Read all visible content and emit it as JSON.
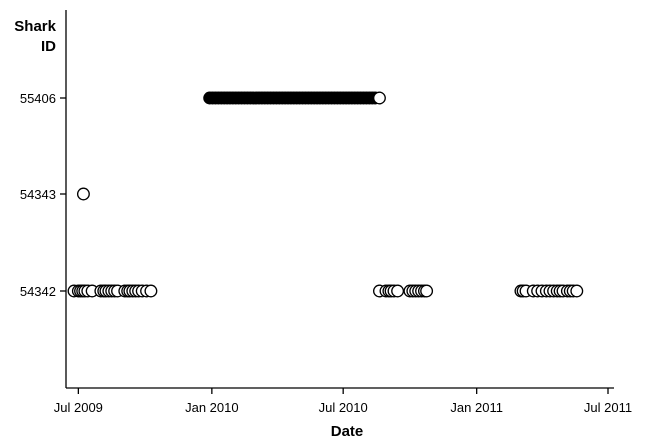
{
  "chart_data": {
    "type": "scatter",
    "title": "",
    "xlabel": "Date",
    "ylabel_lines": [
      "Shark",
      "ID"
    ],
    "x_ticks": [
      {
        "date": "2009-07-01",
        "label": "Jul 2009"
      },
      {
        "date": "2010-01-01",
        "label": "Jan 2010"
      },
      {
        "date": "2010-07-01",
        "label": "Jul 2010"
      },
      {
        "date": "2011-01-01",
        "label": "Jan 2011"
      },
      {
        "date": "2011-07-01",
        "label": "Jul 2011"
      }
    ],
    "y_categories": [
      "54342",
      "54343",
      "55406"
    ],
    "x_range": [
      "2009-06-25",
      "2011-07-01"
    ],
    "grid": false,
    "legend": "none",
    "colors": {
      "open_marker_fill": "#ffffff",
      "marker_stroke": "#000000",
      "filled_marker": "#000000",
      "axis": "#000000"
    },
    "series": [
      {
        "id": "55406",
        "marker": "filled",
        "dates": [
          "2009-12-29",
          "2010-01-02",
          "2010-01-06",
          "2010-01-10",
          "2010-01-14",
          "2010-01-18",
          "2010-01-22",
          "2010-01-26",
          "2010-01-30",
          "2010-02-03",
          "2010-02-07",
          "2010-02-11",
          "2010-02-15",
          "2010-02-19",
          "2010-02-23",
          "2010-02-27",
          "2010-03-03",
          "2010-03-07",
          "2010-03-11",
          "2010-03-15",
          "2010-03-19",
          "2010-03-23",
          "2010-03-27",
          "2010-03-31",
          "2010-04-04",
          "2010-04-08",
          "2010-04-12",
          "2010-04-16",
          "2010-04-20",
          "2010-04-24",
          "2010-04-28",
          "2010-05-02",
          "2010-05-06",
          "2010-05-10",
          "2010-05-14",
          "2010-05-18",
          "2010-05-22",
          "2010-05-26",
          "2010-05-30",
          "2010-06-03",
          "2010-06-07",
          "2010-06-11",
          "2010-06-15",
          "2010-06-19",
          "2010-06-23",
          "2010-06-27",
          "2010-07-01",
          "2010-07-05",
          "2010-07-09",
          "2010-07-13",
          "2010-07-17",
          "2010-07-21",
          "2010-07-25",
          "2010-07-29",
          "2010-08-02",
          "2010-08-06",
          "2010-08-10",
          "2010-08-14"
        ]
      },
      {
        "id": "55406",
        "marker": "open",
        "dates": [
          "2010-08-20"
        ]
      },
      {
        "id": "54343",
        "marker": "open",
        "dates": [
          "2009-07-08"
        ]
      },
      {
        "id": "54342",
        "marker": "open",
        "dates": [
          "2009-06-25",
          "2009-07-01",
          "2009-07-04",
          "2009-07-07",
          "2009-07-10",
          "2009-07-14",
          "2009-07-20",
          "2009-08-01",
          "2009-08-05",
          "2009-08-08",
          "2009-08-12",
          "2009-08-16",
          "2009-08-20",
          "2009-08-24",
          "2009-09-03",
          "2009-09-07",
          "2009-09-10",
          "2009-09-14",
          "2009-09-18",
          "2009-09-22",
          "2009-09-27",
          "2009-10-03",
          "2009-10-09",
          "2010-08-20",
          "2010-08-29",
          "2010-09-02",
          "2010-09-05",
          "2010-09-09",
          "2010-09-14",
          "2010-10-01",
          "2010-10-05",
          "2010-10-09",
          "2010-10-13",
          "2010-10-17",
          "2010-10-21",
          "2010-10-24",
          "2011-03-03",
          "2011-03-06",
          "2011-03-10",
          "2011-03-20",
          "2011-03-26",
          "2011-04-01",
          "2011-04-07",
          "2011-04-12",
          "2011-04-17",
          "2011-04-22",
          "2011-04-26",
          "2011-04-30",
          "2011-05-06",
          "2011-05-10",
          "2011-05-14",
          "2011-05-19"
        ]
      }
    ]
  }
}
